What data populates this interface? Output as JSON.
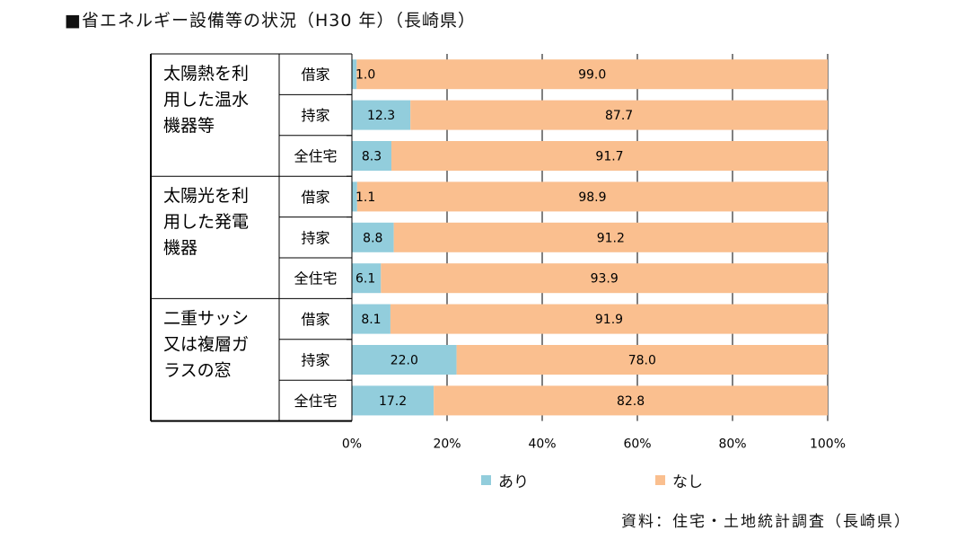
{
  "title": "■省エネルギー設備等の状況（H30 年）（長崎県）",
  "source": "資料：住宅・土地統計調査（長崎県）",
  "colors": {
    "ari": "#92CDDC",
    "nashi": "#FABF8F",
    "grid": "#000000"
  },
  "chart_data": {
    "type": "bar",
    "orientation": "horizontal",
    "stacked": "percent",
    "groups": [
      {
        "label": "太陽熱を利用した温水機器等",
        "label_lines": [
          "太陽熱を利",
          "用した温水",
          "機器等"
        ]
      },
      {
        "label": "太陽光を利用した発電機器",
        "label_lines": [
          "太陽光を利",
          "用した発電",
          "機器"
        ]
      },
      {
        "label": "二重サッシ又は複層ガラスの窓",
        "label_lines": [
          "二重サッシ",
          "又は複層ガ",
          "ラスの窓"
        ]
      }
    ],
    "categories": [
      "借家",
      "持家",
      "全住宅",
      "借家",
      "持家",
      "全住宅",
      "借家",
      "持家",
      "全住宅"
    ],
    "series": [
      {
        "name": "あり",
        "values": [
          1.0,
          12.3,
          8.3,
          1.1,
          8.8,
          6.1,
          8.1,
          22.0,
          17.2
        ]
      },
      {
        "name": "なし",
        "values": [
          99.0,
          87.7,
          91.7,
          98.9,
          91.2,
          93.9,
          91.9,
          78.0,
          82.8
        ]
      }
    ],
    "xlim": [
      0,
      100
    ],
    "xticks": [
      "0%",
      "20%",
      "40%",
      "60%",
      "80%",
      "100%"
    ],
    "grid": true,
    "legend": "bottom"
  }
}
